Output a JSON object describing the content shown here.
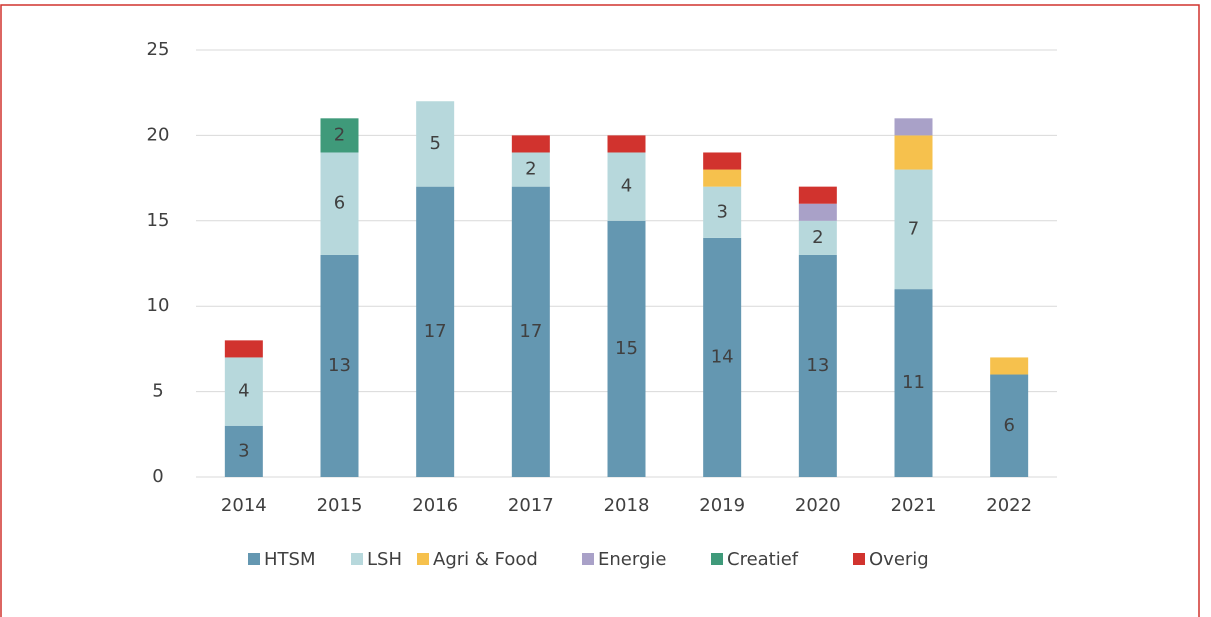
{
  "chart_data": {
    "type": "stacked_bar",
    "categories": [
      "2014",
      "2015",
      "2016",
      "2017",
      "2018",
      "2019",
      "2020",
      "2021",
      "2022"
    ],
    "series": [
      {
        "name": "HTSM",
        "color": "#6497b1",
        "values": [
          3,
          13,
          17,
          17,
          15,
          14,
          13,
          11,
          6
        ]
      },
      {
        "name": "LSH",
        "color": "#b7d8dc",
        "values": [
          4,
          6,
          5,
          2,
          4,
          3,
          2,
          7,
          0
        ]
      },
      {
        "name": "Agri & Food",
        "color": "#f6c14d",
        "values": [
          0,
          0,
          0,
          0,
          0,
          1,
          0,
          2,
          1
        ]
      },
      {
        "name": "Energie",
        "color": "#a9a1c8",
        "values": [
          0,
          0,
          0,
          0,
          0,
          0,
          1,
          1,
          0
        ]
      },
      {
        "name": "Creatief",
        "color": "#3f9a7a",
        "values": [
          0,
          2,
          0,
          0,
          0,
          0,
          0,
          0,
          0
        ],
        "value_labels": [
          null,
          "2",
          null,
          null,
          null,
          null,
          null,
          null,
          null
        ]
      },
      {
        "name": "Overig",
        "color": "#d1332e",
        "values": [
          1,
          0,
          0,
          1,
          1,
          1,
          1,
          0,
          0
        ]
      }
    ],
    "labeled_series": [
      0,
      1
    ],
    "ylim": [
      0,
      25
    ],
    "yticks": [
      0,
      5,
      10,
      15,
      20,
      25
    ],
    "grid": true,
    "legend": "bottom"
  }
}
